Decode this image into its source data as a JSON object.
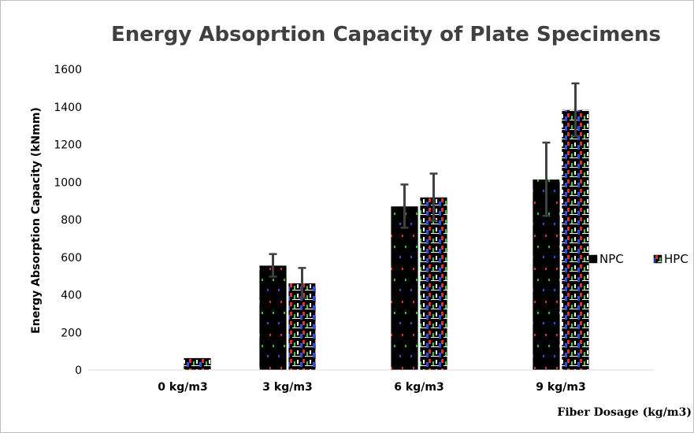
{
  "chart_data": {
    "type": "bar",
    "title": "Energy Absoprtion Capacity of Plate Specimens",
    "xlabel": "Fiber Dosage (kg/m3)",
    "ylabel": "Energy Absorption Capacity (kNmm)",
    "categories": [
      "0 kg/m3",
      "3 kg/m3",
      "6 kg/m3",
      "9 kg/m3"
    ],
    "ylim": [
      0,
      1600
    ],
    "yticks": [
      0,
      200,
      400,
      600,
      800,
      1000,
      1200,
      1400,
      1600
    ],
    "grid": false,
    "legend_position": "right",
    "series": [
      {
        "name": "NPC",
        "values": [
          0,
          557,
          872,
          1015
        ],
        "error": [
          0,
          60,
          115,
          195
        ],
        "color": "#000000"
      },
      {
        "name": "HPC",
        "values": [
          65,
          463,
          920,
          1385
        ],
        "error": [
          0,
          80,
          125,
          140
        ],
        "color": "#000000"
      }
    ]
  }
}
